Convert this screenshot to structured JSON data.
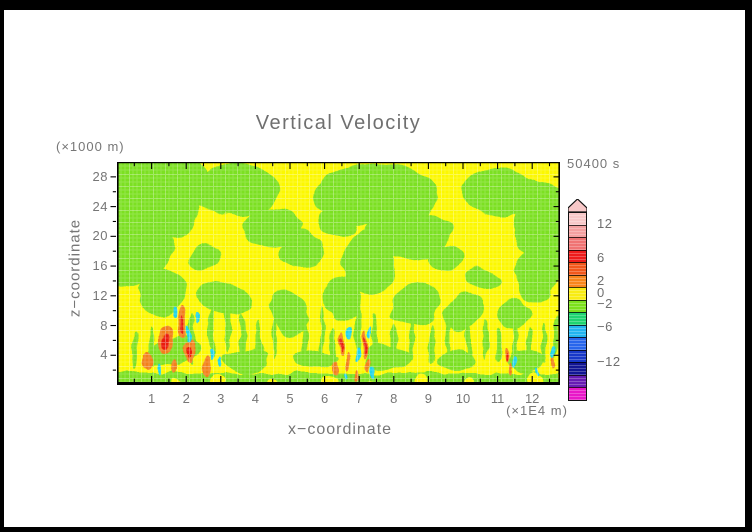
{
  "chart_data": {
    "type": "heatmap",
    "subtype": "filled-contour-cross-section",
    "title": "Vertical Velocity",
    "time": "50400 s",
    "xlabel": "x−coordinate",
    "x_unit": "(×1E4 m)",
    "x_ticks": [
      "1",
      "2",
      "3",
      "4",
      "5",
      "6",
      "7",
      "8",
      "9",
      "10",
      "11",
      "12"
    ],
    "x_range": [
      0,
      12.8
    ],
    "ylabel": "z−coordinate",
    "y_unit": "(×1000 m)",
    "y_ticks": [
      "4",
      "8",
      "12",
      "16",
      "20",
      "24",
      "28"
    ],
    "y_range": [
      0,
      30
    ],
    "grid": "fine white crosshatch over filled contours",
    "legend_position": "right colorbar with up-arrow overflow cap",
    "levels": [
      -14,
      -12,
      -10,
      -8,
      -6,
      -4,
      -2,
      0,
      2,
      4,
      6,
      8,
      10,
      12,
      14
    ],
    "colorbar": {
      "colors_top_to_bottom": [
        "#f8c8c8",
        "#f4a0a0",
        "#f07474",
        "#ee1c1c",
        "#f2581c",
        "#f8861c",
        "#f8ec14",
        "#7ce01c",
        "#1ed470",
        "#22b4f0",
        "#2866ec",
        "#1838c8",
        "#121694",
        "#681cb4",
        "#e818c8"
      ],
      "arrow_color": "#f8c8c8",
      "labels": [
        {
          "text": "12",
          "k": 1
        },
        {
          "text": "6",
          "k": 4
        },
        {
          "text": "2",
          "k": 6
        },
        {
          "text": "0",
          "k": 7
        },
        {
          "text": "−2",
          "k": 8
        },
        {
          "text": "−6",
          "k": 10
        },
        {
          "text": "−12",
          "k": 13
        }
      ]
    },
    "field_summary": "Mostly weak field: yellow regions = 0 to 2, green regions = −2 to 0. Strong narrow updrafts (orange/red, 4 to 8) and downdrafts (cyan, −6 to −2) below z≈8 km near x≈2×10⁴ m, x≈7×10⁴ m and x≈11×10⁴ m.",
    "render": {
      "background": "#fcf800",
      "green": "#7ce020",
      "orange": "#f2801a",
      "red": "#ea1d10",
      "cyan": "#22d4e8",
      "green_masses": [
        [
          28,
          18,
          58,
          42
        ],
        [
          14,
          78,
          40,
          48
        ],
        [
          55,
          48,
          32,
          26
        ],
        [
          118,
          26,
          44,
          24
        ],
        [
          155,
          62,
          30,
          20
        ],
        [
          182,
          88,
          22,
          16
        ],
        [
          262,
          32,
          60,
          30
        ],
        [
          292,
          72,
          42,
          24
        ],
        [
          252,
          100,
          26,
          32
        ],
        [
          385,
          32,
          42,
          22
        ],
        [
          430,
          62,
          32,
          40
        ],
        [
          420,
          112,
          24,
          26
        ],
        [
          45,
          130,
          24,
          20
        ],
        [
          106,
          136,
          26,
          16
        ],
        [
          170,
          150,
          20,
          24
        ],
        [
          226,
          136,
          18,
          22
        ],
        [
          300,
          140,
          24,
          18
        ],
        [
          346,
          152,
          18,
          15
        ],
        [
          398,
          152,
          15,
          17
        ],
        [
          60,
          190,
          26,
          13
        ],
        [
          130,
          196,
          22,
          11
        ],
        [
          200,
          199,
          20,
          10
        ],
        [
          270,
          196,
          22,
          11
        ],
        [
          340,
          199,
          20,
          10
        ],
        [
          410,
          196,
          22,
          11
        ],
        [
          222,
          60,
          20,
          16
        ],
        [
          330,
          95,
          18,
          14
        ],
        [
          90,
          95,
          16,
          14
        ],
        [
          365,
          120,
          16,
          12
        ]
      ],
      "green_wisps": [
        [
          18,
          190,
          3,
          18
        ],
        [
          35,
          185,
          3,
          20
        ],
        [
          75,
          178,
          3,
          24
        ],
        [
          95,
          170,
          3,
          26
        ],
        [
          110,
          162,
          3,
          28
        ],
        [
          125,
          175,
          3,
          24
        ],
        [
          142,
          180,
          3,
          21
        ],
        [
          158,
          172,
          2.5,
          25
        ],
        [
          188,
          178,
          3,
          23
        ],
        [
          205,
          172,
          2.5,
          26
        ],
        [
          215,
          183,
          3,
          19
        ],
        [
          240,
          167,
          3,
          28
        ],
        [
          258,
          176,
          2.5,
          25
        ],
        [
          278,
          181,
          3,
          21
        ],
        [
          295,
          176,
          2.5,
          23
        ],
        [
          315,
          183,
          3,
          19
        ],
        [
          330,
          179,
          2.5,
          21
        ],
        [
          352,
          181,
          3,
          19
        ],
        [
          368,
          177,
          2.5,
          21
        ],
        [
          382,
          183,
          2.5,
          17
        ],
        [
          398,
          179,
          2.5,
          19
        ],
        [
          412,
          183,
          2.5,
          17
        ],
        [
          428,
          181,
          2.5,
          19
        ],
        [
          438,
          176,
          2.5,
          21
        ]
      ],
      "bottom_strip": [
        0,
        211,
        443,
        12
      ],
      "yellow_notches": [
        [
          100,
          219,
          8,
          7
        ],
        [
          155,
          221,
          5,
          5
        ],
        [
          212,
          220,
          7,
          6
        ],
        [
          305,
          219,
          8,
          7
        ],
        [
          352,
          221,
          6,
          5
        ],
        [
          418,
          218,
          7,
          6
        ],
        [
          60,
          222,
          5,
          4
        ],
        [
          255,
          222,
          5,
          4
        ]
      ],
      "warm_orange": [
        [
          49,
          178,
          6,
          14
        ],
        [
          64,
          160,
          5,
          16
        ],
        [
          73,
          188,
          5,
          12
        ],
        [
          31,
          199,
          4,
          9
        ],
        [
          88,
          205,
          4,
          9
        ],
        [
          57,
          206,
          3,
          7
        ],
        [
          224,
          182,
          3,
          13
        ],
        [
          230,
          200,
          2.5,
          8
        ],
        [
          247,
          182,
          3,
          15
        ],
        [
          252,
          203,
          2.5,
          7
        ],
        [
          218,
          206,
          2.5,
          7
        ],
        [
          241,
          213,
          2,
          6
        ],
        [
          390,
          193,
          2.5,
          8
        ],
        [
          394,
          207,
          2,
          6
        ],
        [
          436,
          200,
          2,
          6
        ]
      ],
      "warm_red": [
        [
          49,
          180,
          2.5,
          8
        ],
        [
          64,
          162,
          2.2,
          9
        ],
        [
          73,
          190,
          2,
          6
        ],
        [
          224,
          184,
          1.6,
          8
        ],
        [
          247,
          184,
          1.6,
          9
        ],
        [
          390,
          195,
          1.2,
          5
        ]
      ],
      "cool_cyan": [
        [
          56,
          150,
          2.5,
          6
        ],
        [
          71,
          172,
          2.5,
          7
        ],
        [
          80,
          157,
          2,
          5
        ],
        [
          93,
          193,
          2.5,
          6
        ],
        [
          42,
          207,
          2,
          5
        ],
        [
          103,
          200,
          2,
          5
        ],
        [
          233,
          170,
          2.5,
          7
        ],
        [
          253,
          170,
          2,
          6
        ],
        [
          240,
          193,
          2.5,
          6
        ],
        [
          256,
          210,
          2,
          5
        ],
        [
          228,
          215,
          2,
          4
        ],
        [
          398,
          200,
          2,
          5
        ],
        [
          436,
          190,
          2,
          6
        ],
        [
          420,
          210,
          1.5,
          4
        ]
      ]
    }
  }
}
